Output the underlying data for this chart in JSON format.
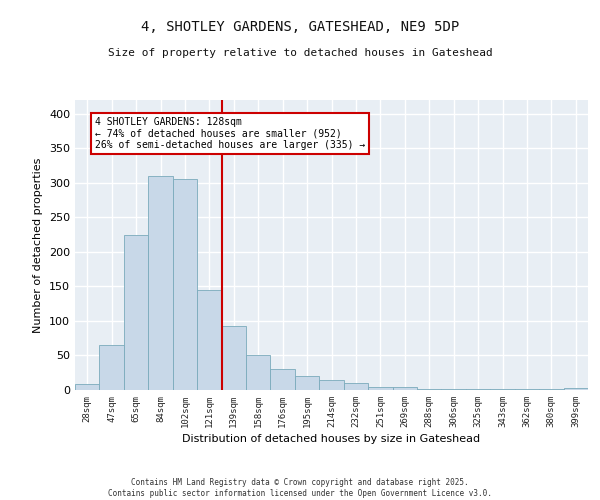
{
  "title1": "4, SHOTLEY GARDENS, GATESHEAD, NE9 5DP",
  "title2": "Size of property relative to detached houses in Gateshead",
  "xlabel": "Distribution of detached houses by size in Gateshead",
  "ylabel": "Number of detached properties",
  "categories": [
    "28sqm",
    "47sqm",
    "65sqm",
    "84sqm",
    "102sqm",
    "121sqm",
    "139sqm",
    "158sqm",
    "176sqm",
    "195sqm",
    "214sqm",
    "232sqm",
    "251sqm",
    "269sqm",
    "288sqm",
    "306sqm",
    "325sqm",
    "343sqm",
    "362sqm",
    "380sqm",
    "399sqm"
  ],
  "bar_values": [
    9,
    65,
    225,
    310,
    305,
    145,
    93,
    50,
    31,
    20,
    14,
    10,
    5,
    4,
    2,
    1,
    1,
    2,
    1,
    1,
    3
  ],
  "bar_color": "#c8d8e8",
  "bar_edge_color": "#7aaabb",
  "vline_color": "#cc0000",
  "annotation_text": "4 SHOTLEY GARDENS: 128sqm\n← 74% of detached houses are smaller (952)\n26% of semi-detached houses are larger (335) →",
  "background_color": "#e8eef4",
  "ylim": [
    0,
    420
  ],
  "yticks": [
    0,
    50,
    100,
    150,
    200,
    250,
    300,
    350,
    400
  ],
  "footer1": "Contains HM Land Registry data © Crown copyright and database right 2025.",
  "footer2": "Contains public sector information licensed under the Open Government Licence v3.0."
}
